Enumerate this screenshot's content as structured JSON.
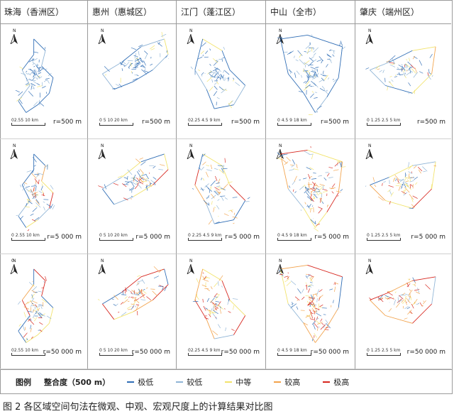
{
  "columns": [
    "珠海（香洲区）",
    "惠州（惠城区）",
    "江门（蓬江区）",
    "中山（全市）",
    "肇庆（端州区）"
  ],
  "north_label": "N",
  "zero_label": "0",
  "rows": [
    {
      "radius": [
        "r=500 m",
        "r=500 m",
        "r=500 m",
        "r=500 m",
        "r=500 m"
      ],
      "scales": [
        "02.55     10 km",
        "0  5 10    20 km",
        "02.25 4.5  9 km",
        "0 4.5  9      18 km",
        "0 1.25 2.5  5 km"
      ]
    },
    {
      "radius": [
        "r=5 000 m",
        "r=5 000 m",
        "r=5 000 m",
        "r=5 000 m",
        "r=5 000 m"
      ],
      "scales": [
        "0  2.55     10 km",
        "0 5 10    20 km",
        "0 2.25 4.5  9 km",
        "0 4.5  9      18 km",
        "0 1.25 2.5  5 km"
      ]
    },
    {
      "radius": [
        "r=50 000 m",
        "r=50 000 m",
        "r=50 000 m",
        "r=50 000 m",
        "r=50 000 m"
      ],
      "scales": [
        "02.55     10 km",
        "0 5 10    20 km",
        "02.25 4.5  9 km",
        "0 4.5 9      18 km",
        "0 1.25 2.5  5 km"
      ]
    }
  ],
  "legend": {
    "title": "图例",
    "subtitle": "整合度（500 m）",
    "items": [
      {
        "label": "极低",
        "color": "#2f6db5"
      },
      {
        "label": "较低",
        "color": "#8fb4d6"
      },
      {
        "label": "中等",
        "color": "#f2e36b"
      },
      {
        "label": "较高",
        "color": "#f2a24a"
      },
      {
        "label": "极高",
        "color": "#d7261e"
      }
    ]
  },
  "caption": "图 2  各区域空间句法在微观、中观、宏观尺度上的计算结果对比图"
}
